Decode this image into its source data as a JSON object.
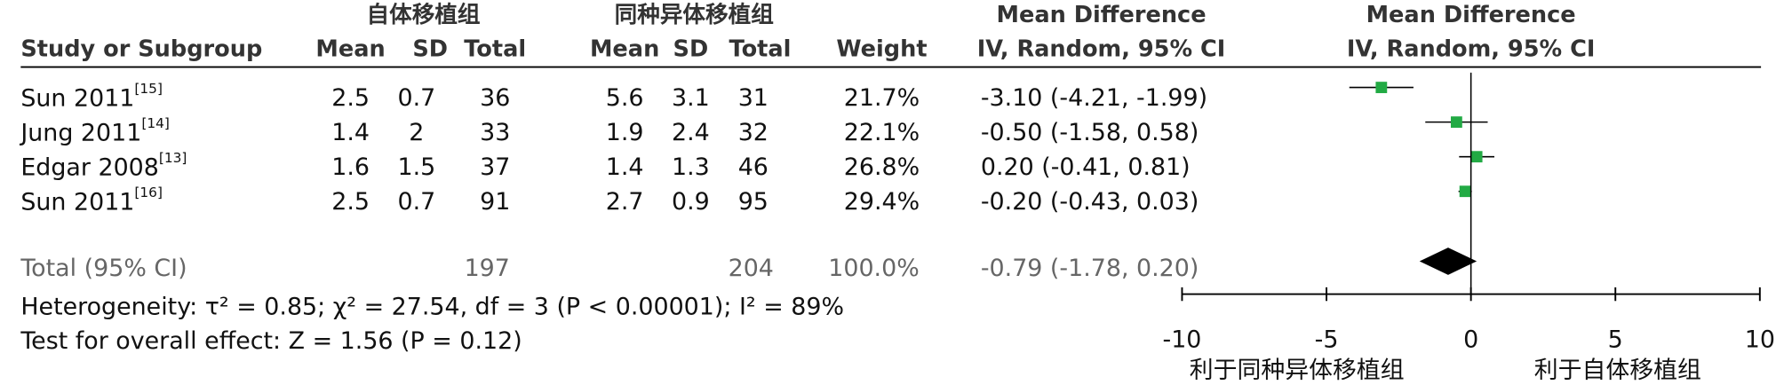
{
  "chart_data": {
    "type": "forest",
    "group_headers": [
      "自体移植组",
      "同种异体移植组"
    ],
    "headers": [
      "Study or Subgroup",
      "Mean",
      "SD",
      "Total",
      "Mean",
      "SD",
      "Total",
      "Weight",
      "IV, Random, 95% CI",
      "IV, Random, 95% CI"
    ],
    "md_headers": [
      "Mean Difference",
      "Mean Difference"
    ],
    "studies": [
      {
        "name": "Sun 2011",
        "ref": "[15]",
        "m1": 2.5,
        "sd1": 0.7,
        "n1": 36,
        "m2": 5.6,
        "sd2": 3.1,
        "n2": 31,
        "weight": "21.7%",
        "md": -3.1,
        "lo": -4.21,
        "hi": -1.99,
        "ci_label": "-3.10 (-4.21, -1.99)"
      },
      {
        "name": "Jung 2011",
        "ref": "[14]",
        "m1": 1.4,
        "sd1": 2,
        "n1": 33,
        "m2": 1.9,
        "sd2": 2.4,
        "n2": 32,
        "weight": "22.1%",
        "md": -0.5,
        "lo": -1.58,
        "hi": 0.58,
        "ci_label": "-0.50 (-1.58, 0.58)"
      },
      {
        "name": "Edgar 2008",
        "ref": "[13]",
        "m1": 1.6,
        "sd1": 1.5,
        "n1": 37,
        "m2": 1.4,
        "sd2": 1.3,
        "n2": 46,
        "weight": "26.8%",
        "md": 0.2,
        "lo": -0.41,
        "hi": 0.81,
        "ci_label": "0.20 (-0.41, 0.81)"
      },
      {
        "name": "Sun 2011",
        "ref": "[16]",
        "m1": 2.5,
        "sd1": 0.7,
        "n1": 91,
        "m2": 2.7,
        "sd2": 0.9,
        "n2": 95,
        "weight": "29.4%",
        "md": -0.2,
        "lo": -0.43,
        "hi": 0.03,
        "ci_label": "-0.20 (-0.43, 0.03)"
      }
    ],
    "total": {
      "name": "Total (95% CI)",
      "n1": 197,
      "n2": 204,
      "weight": "100.0%",
      "md": -0.79,
      "lo": -1.78,
      "hi": 0.2,
      "ci_label": "-0.79 (-1.78, 0.20)"
    },
    "heterogeneity": "Heterogeneity: τ² = 0.85; χ² = 27.54, df = 3 (P < 0.00001); I² = 89%",
    "overall_effect": "Test for overall effect: Z = 1.56 (P = 0.12)",
    "color": "#22aa44",
    "xlim": [
      -10,
      10
    ],
    "xticks": [
      -10,
      -5,
      0,
      5,
      10
    ],
    "x_labels": [
      "利于同种异体移植组",
      "利于自体移植组"
    ]
  }
}
